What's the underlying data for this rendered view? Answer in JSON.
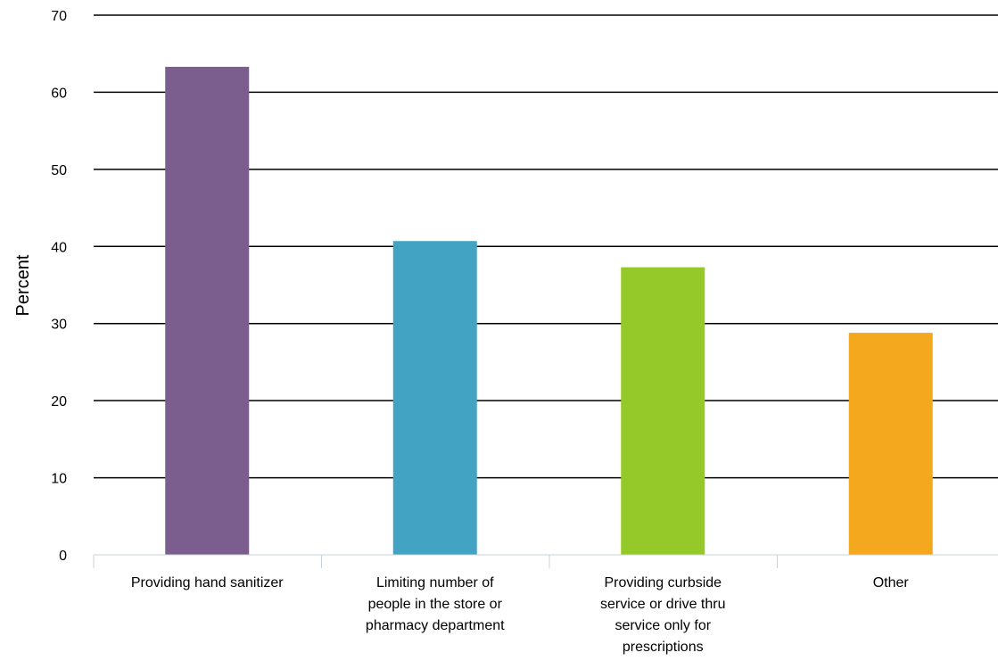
{
  "chart_data": {
    "type": "bar",
    "title": "",
    "xlabel": "",
    "ylabel": "Percent",
    "ylim": [
      0,
      70
    ],
    "yticks": [
      0,
      10,
      20,
      30,
      40,
      50,
      60,
      70
    ],
    "grid": true,
    "legend": "none",
    "categories": [
      [
        "Providing hand sanitizer"
      ],
      [
        "Limiting number of",
        "people in the store or",
        "pharmacy department"
      ],
      [
        "Providing curbside",
        "service or drive thru",
        "service only for",
        "prescriptions"
      ],
      [
        "Other"
      ]
    ],
    "values": [
      63.3,
      40.7,
      37.3,
      28.8
    ],
    "colors": [
      "#7b5e8d",
      "#42a3c2",
      "#95c829",
      "#f4a81d"
    ]
  }
}
